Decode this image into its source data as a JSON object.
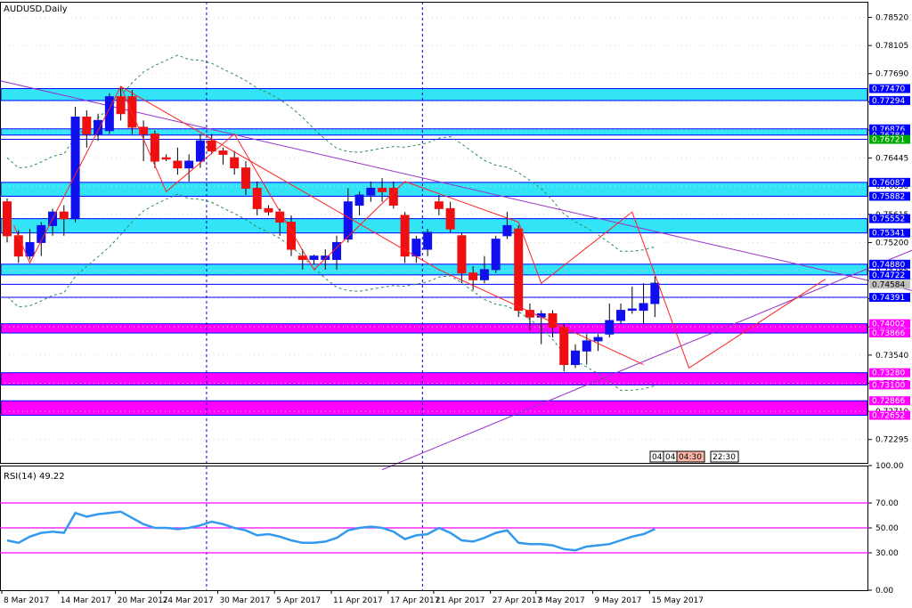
{
  "chart_data": {
    "type": "candlestick",
    "symbol_label": "AUDUSD,Daily",
    "colors": {
      "up": "#1010ee",
      "down": "#ee1010",
      "zone_cyan": "#33e3f6",
      "zone_magenta": "#ff00ff",
      "rsi": "#3399ee",
      "trend_purple": "#9932cc",
      "zigzag": "#ff2222",
      "band": "#2e8b57",
      "separator": "#0000cd"
    },
    "price_axis": {
      "range": [
        0.7195,
        0.7875
      ],
      "ticks": [
        "0.78520",
        "0.78105",
        "0.77690",
        "0.77275",
        "0.76860",
        "0.76445",
        "0.76030",
        "0.75615",
        "0.75200",
        "0.74785",
        "0.74370",
        "0.73955",
        "0.73540",
        "0.73125",
        "0.72710",
        "0.72295"
      ]
    },
    "price_levels": [
      {
        "label": "0.77470",
        "bg": "#0000ff",
        "text": "#ffffff"
      },
      {
        "label": "0.77294",
        "bg": "#0000ff",
        "text": "#ffffff"
      },
      {
        "label": "0.76876",
        "bg": "#0000ff",
        "text": "#ffffff"
      },
      {
        "label": "0.76784",
        "bg": "#0000ff",
        "text": "#ffffff"
      },
      {
        "label": "0.76721",
        "bg": "#00aa00",
        "text": "#ffffff"
      },
      {
        "label": "0.76087",
        "bg": "#0000ff",
        "text": "#ffffff"
      },
      {
        "label": "0.75882",
        "bg": "#0000ff",
        "text": "#ffffff"
      },
      {
        "label": "0.75552",
        "bg": "#0000ff",
        "text": "#ffffff"
      },
      {
        "label": "0.75341",
        "bg": "#0000ff",
        "text": "#ffffff"
      },
      {
        "label": "0.74880",
        "bg": "#0000ff",
        "text": "#ffffff"
      },
      {
        "label": "0.74722",
        "bg": "#0000ff",
        "text": "#ffffff"
      },
      {
        "label": "0.74584",
        "bg": "#c0c0c0",
        "text": "#000000"
      },
      {
        "label": "0.74391",
        "bg": "#0000ff",
        "text": "#ffffff"
      },
      {
        "label": "0.74002",
        "bg": "#ff00ff",
        "text": "#ffffff"
      },
      {
        "label": "0.73866",
        "bg": "#ff00ff",
        "text": "#ffffff"
      },
      {
        "label": "0.73280",
        "bg": "#ff00ff",
        "text": "#ffffff"
      },
      {
        "label": "0.73100",
        "bg": "#ff00ff",
        "text": "#ffffff"
      },
      {
        "label": "0.72866",
        "bg": "#ff00ff",
        "text": "#ffffff"
      },
      {
        "label": "0.72652",
        "bg": "#ff00ff",
        "text": "#ffffff"
      }
    ],
    "zones": [
      {
        "from": 0.77294,
        "to": 0.7747,
        "color": "cyan"
      },
      {
        "from": 0.76784,
        "to": 0.76876,
        "color": "cyan"
      },
      {
        "from": 0.75882,
        "to": 0.76087,
        "color": "cyan"
      },
      {
        "from": 0.75341,
        "to": 0.75552,
        "color": "cyan"
      },
      {
        "from": 0.74722,
        "to": 0.7488,
        "color": "cyan"
      },
      {
        "from": 0.73866,
        "to": 0.74002,
        "color": "magenta"
      },
      {
        "from": 0.731,
        "to": 0.7328,
        "color": "magenta"
      },
      {
        "from": 0.72652,
        "to": 0.72866,
        "color": "magenta"
      }
    ],
    "level_lines": [
      0.76721,
      0.74584,
      0.74391
    ],
    "dates": [
      "8 Mar 2017",
      "14 Mar 2017",
      "20 Mar 2017",
      "24 Mar 2017",
      "30 Mar 2017",
      "5 Apr 2017",
      "11 Apr 2017",
      "17 Apr 2017",
      "21 Apr 2017",
      "27 Apr 2017",
      "3 May 2017",
      "9 May 2017",
      "15 May 2017"
    ],
    "candles": [
      [
        0.758,
        0.7585,
        0.752,
        0.753
      ],
      [
        0.753,
        0.7538,
        0.749,
        0.75
      ],
      [
        0.75,
        0.754,
        0.7495,
        0.752
      ],
      [
        0.752,
        0.755,
        0.75,
        0.7545
      ],
      [
        0.7545,
        0.757,
        0.753,
        0.7565
      ],
      [
        0.7565,
        0.7575,
        0.753,
        0.7555
      ],
      [
        0.7555,
        0.772,
        0.755,
        0.7705
      ],
      [
        0.7705,
        0.7715,
        0.766,
        0.768
      ],
      [
        0.768,
        0.771,
        0.767,
        0.77
      ],
      [
        0.7685,
        0.774,
        0.768,
        0.7735
      ],
      [
        0.7735,
        0.775,
        0.77,
        0.771
      ],
      [
        0.7735,
        0.7745,
        0.768,
        0.769
      ],
      [
        0.769,
        0.77,
        0.764,
        0.768
      ],
      [
        0.768,
        0.7685,
        0.763,
        0.764
      ],
      [
        0.7645,
        0.765,
        0.764,
        0.7643
      ],
      [
        0.764,
        0.766,
        0.762,
        0.763
      ],
      [
        0.763,
        0.765,
        0.761,
        0.764
      ],
      [
        0.764,
        0.768,
        0.763,
        0.767
      ],
      [
        0.767,
        0.768,
        0.765,
        0.7655
      ],
      [
        0.7655,
        0.766,
        0.7635,
        0.765
      ],
      [
        0.7645,
        0.7655,
        0.762,
        0.763
      ],
      [
        0.763,
        0.764,
        0.759,
        0.76
      ],
      [
        0.76,
        0.761,
        0.756,
        0.757
      ],
      [
        0.757,
        0.7575,
        0.756,
        0.7565
      ],
      [
        0.7565,
        0.757,
        0.753,
        0.755
      ],
      [
        0.755,
        0.756,
        0.75,
        0.751
      ],
      [
        0.75,
        0.751,
        0.748,
        0.7495
      ],
      [
        0.7495,
        0.7502,
        0.7488,
        0.75
      ],
      [
        0.7495,
        0.751,
        0.748,
        0.75
      ],
      [
        0.7495,
        0.753,
        0.748,
        0.752
      ],
      [
        0.7525,
        0.76,
        0.752,
        0.758
      ],
      [
        0.7575,
        0.7595,
        0.756,
        0.759
      ],
      [
        0.759,
        0.761,
        0.758,
        0.76
      ],
      [
        0.76,
        0.7615,
        0.758,
        0.7595
      ],
      [
        0.76,
        0.761,
        0.757,
        0.7575
      ],
      [
        0.756,
        0.7565,
        0.749,
        0.75
      ],
      [
        0.75,
        0.753,
        0.749,
        0.7525
      ],
      [
        0.751,
        0.754,
        0.75,
        0.7535
      ],
      [
        0.758,
        0.759,
        0.756,
        0.757
      ],
      [
        0.757,
        0.758,
        0.7535,
        0.754
      ],
      [
        0.753,
        0.7535,
        0.746,
        0.7475
      ],
      [
        0.7475,
        0.7485,
        0.745,
        0.7465
      ],
      [
        0.7465,
        0.75,
        0.746,
        0.748
      ],
      [
        0.748,
        0.753,
        0.7475,
        0.7525
      ],
      [
        0.753,
        0.7565,
        0.7525,
        0.7545
      ],
      [
        0.754,
        0.7545,
        0.741,
        0.742
      ],
      [
        0.742,
        0.743,
        0.739,
        0.741
      ],
      [
        0.741,
        0.742,
        0.737,
        0.7415
      ],
      [
        0.7415,
        0.742,
        0.738,
        0.7395
      ],
      [
        0.7395,
        0.74,
        0.733,
        0.734
      ],
      [
        0.734,
        0.737,
        0.7335,
        0.736
      ],
      [
        0.736,
        0.7385,
        0.734,
        0.7375
      ],
      [
        0.7375,
        0.7385,
        0.736,
        0.738
      ],
      [
        0.7385,
        0.743,
        0.738,
        0.7405
      ],
      [
        0.7405,
        0.743,
        0.74,
        0.742
      ],
      [
        0.742,
        0.7455,
        0.7415,
        0.7422
      ],
      [
        0.742,
        0.746,
        0.74,
        0.743
      ],
      [
        0.743,
        0.747,
        0.741,
        0.746
      ]
    ],
    "rsi": {
      "label": "RSI(14) 49.22",
      "range": [
        0,
        100
      ],
      "ticks": [
        "100.00",
        "70.00",
        "50.00",
        "30.00",
        "0.00"
      ],
      "levels": [
        70,
        50,
        30
      ],
      "values": [
        40,
        38,
        43,
        46,
        47,
        46,
        62,
        59,
        61,
        62,
        63,
        58,
        53,
        50,
        50,
        49,
        50,
        52,
        55,
        53,
        50,
        48,
        44,
        45,
        43,
        40,
        38,
        38,
        39,
        42,
        48,
        50,
        51,
        50,
        47,
        41,
        44,
        45,
        50,
        46,
        40,
        39,
        42,
        46,
        48,
        38,
        37,
        37,
        36,
        33,
        32,
        35,
        36,
        37,
        40,
        43,
        45,
        49
      ]
    },
    "time_labels": [
      "04:04",
      "04:04",
      "04:30",
      "22:30"
    ],
    "overlays": {
      "zigzag": [
        [
          0.6,
          0.7545
        ],
        [
          2,
          0.749
        ],
        [
          10,
          0.775
        ],
        [
          14,
          0.7595
        ],
        [
          20,
          0.768
        ],
        [
          27,
          0.748
        ],
        [
          35,
          0.761
        ],
        [
          45,
          0.755
        ],
        [
          47,
          0.746
        ],
        [
          55,
          0.7565
        ],
        [
          60,
          0.7335
        ],
        [
          72,
          0.7466
        ]
      ],
      "zigzag_long": [
        [
          10,
          0.775
        ],
        [
          38,
          0.748
        ],
        [
          56,
          0.734
        ]
      ],
      "trend_lines": [
        [
          [
            -1,
            0.776
          ],
          [
            82,
            0.744
          ]
        ],
        [
          [
            33,
            0.7185
          ],
          [
            82,
            0.7525
          ]
        ]
      ],
      "separators": [
        17,
        36
      ],
      "rsi_line_index_offset": 0
    }
  }
}
